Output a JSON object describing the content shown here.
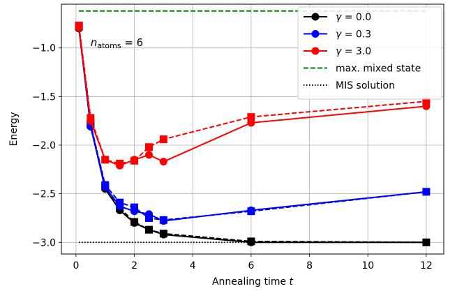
{
  "chart_data": {
    "type": "line",
    "xlabel": "Annealing time t",
    "ylabel": "Energy",
    "xlim": [
      -0.5,
      12.6
    ],
    "ylim": [
      -3.12,
      -0.55
    ],
    "xticks": [
      0,
      2,
      4,
      6,
      8,
      10,
      12
    ],
    "xtick_labels": [
      "0",
      "2",
      "4",
      "6",
      "8",
      "10",
      "12"
    ],
    "yticks": [
      -3.0,
      -2.5,
      -2.0,
      -1.5,
      -1.0
    ],
    "ytick_labels": [
      "−3.0",
      "−2.5",
      "−2.0",
      "−1.5",
      "−1.0"
    ],
    "grid": true,
    "legend_position": "top-right",
    "annotation": "n_atoms = 6",
    "reference_lines": [
      {
        "name": "max. mixed state",
        "y": -0.62,
        "x_range": [
          0.1,
          12
        ],
        "color": "#008000",
        "style": "dashed"
      },
      {
        "name": "MIS solution",
        "y": -3.0,
        "x_range": [
          0.1,
          12
        ],
        "color": "#000000",
        "style": "dotted"
      }
    ],
    "series": [
      {
        "name": "γ = 0.0",
        "color": "#000000",
        "circle": {
          "x": [
            0.1,
            0.5,
            1,
            1.5,
            2,
            2.5,
            3,
            6,
            12
          ],
          "y": [
            -0.8,
            -1.8,
            -2.45,
            -2.67,
            -2.8,
            -2.87,
            -2.92,
            -3.0,
            -3.0
          ]
        },
        "square": {
          "x": [
            0.1,
            0.5,
            1,
            1.5,
            2,
            2.5,
            3,
            6,
            12
          ],
          "y": [
            -0.78,
            -1.78,
            -2.43,
            -2.65,
            -2.79,
            -2.87,
            -2.91,
            -2.99,
            -3.0
          ]
        }
      },
      {
        "name": "γ = 0.3",
        "color": "#0000ff",
        "circle": {
          "x": [
            0.1,
            0.5,
            1,
            1.5,
            2,
            2.5,
            3,
            6,
            12
          ],
          "y": [
            -0.79,
            -1.81,
            -2.43,
            -2.63,
            -2.68,
            -2.71,
            -2.78,
            -2.67,
            -2.48
          ]
        },
        "square": {
          "x": [
            0.1,
            0.5,
            1,
            1.5,
            2,
            2.5,
            3,
            6,
            12
          ],
          "y": [
            -0.77,
            -1.79,
            -2.41,
            -2.59,
            -2.64,
            -2.75,
            -2.77,
            -2.68,
            -2.48
          ]
        }
      },
      {
        "name": "γ = 3.0",
        "color": "#ff0000",
        "circle": {
          "x": [
            0.1,
            0.5,
            1,
            1.5,
            2,
            2.5,
            3,
            6,
            12
          ],
          "y": [
            -0.79,
            -1.75,
            -2.15,
            -2.21,
            -2.15,
            -2.1,
            -2.17,
            -1.77,
            -1.6
          ]
        },
        "square": {
          "x": [
            0.1,
            0.5,
            1,
            1.5,
            2,
            2.5,
            3,
            6,
            12
          ],
          "y": [
            -0.77,
            -1.72,
            -2.15,
            -2.19,
            -2.16,
            -2.02,
            -1.94,
            -1.71,
            -1.55
          ]
        }
      }
    ],
    "legend": [
      {
        "label": "γ = 0.0",
        "color": "#000000",
        "style": "solid-marker"
      },
      {
        "label": "γ = 0.3",
        "color": "#0000ff",
        "style": "solid-marker"
      },
      {
        "label": "γ = 3.0",
        "color": "#ff0000",
        "style": "solid-marker"
      },
      {
        "label": "max. mixed state",
        "color": "#008000",
        "style": "dashed"
      },
      {
        "label": "MIS solution",
        "color": "#000000",
        "style": "dotted"
      }
    ]
  }
}
